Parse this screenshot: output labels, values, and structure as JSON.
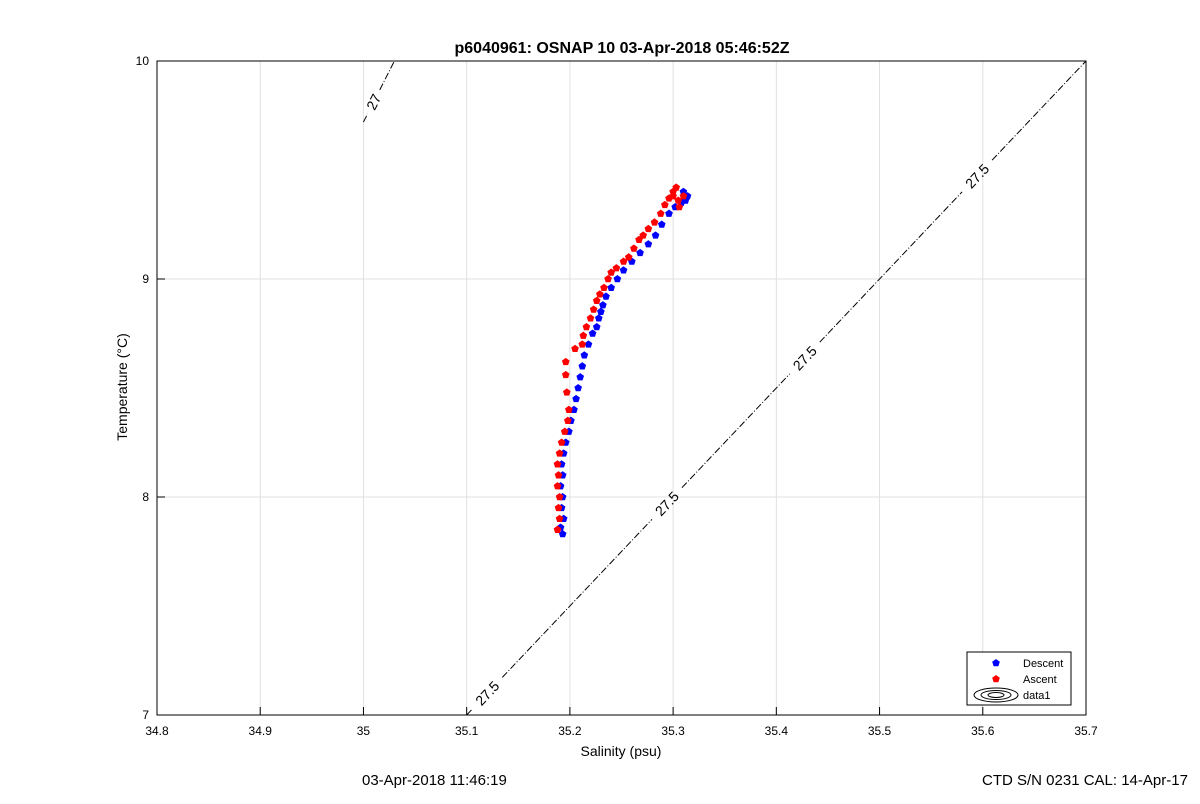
{
  "chart_data": {
    "type": "scatter",
    "title": "p6040961: OSNAP 10 03-Apr-2018 05:46:52Z",
    "xlabel": "Salinity (psu)",
    "ylabel": "Temperature (°C)",
    "xlim": [
      34.8,
      35.7
    ],
    "ylim": [
      7,
      10
    ],
    "xticks": [
      "34.8",
      "34.9",
      "35",
      "35.1",
      "35.2",
      "35.3",
      "35.4",
      "35.5",
      "35.6",
      "35.7"
    ],
    "yticks": [
      "7",
      "8",
      "9",
      "10"
    ],
    "grid": true,
    "legend_position": "bottom-right",
    "series": [
      {
        "name": "Descent",
        "color": "#0000ff",
        "marker": "pentagon",
        "points": [
          [
            35.193,
            7.83
          ],
          [
            35.191,
            7.86
          ],
          [
            35.194,
            7.9
          ],
          [
            35.192,
            7.95
          ],
          [
            35.193,
            8.0
          ],
          [
            35.191,
            8.05
          ],
          [
            35.193,
            8.1
          ],
          [
            35.192,
            8.15
          ],
          [
            35.194,
            8.2
          ],
          [
            35.196,
            8.25
          ],
          [
            35.199,
            8.3
          ],
          [
            35.201,
            8.35
          ],
          [
            35.204,
            8.4
          ],
          [
            35.206,
            8.45
          ],
          [
            35.208,
            8.5
          ],
          [
            35.21,
            8.55
          ],
          [
            35.212,
            8.6
          ],
          [
            35.214,
            8.65
          ],
          [
            35.218,
            8.7
          ],
          [
            35.222,
            8.75
          ],
          [
            35.226,
            8.78
          ],
          [
            35.228,
            8.82
          ],
          [
            35.23,
            8.85
          ],
          [
            35.232,
            8.88
          ],
          [
            35.235,
            8.92
          ],
          [
            35.24,
            8.96
          ],
          [
            35.246,
            9.0
          ],
          [
            35.252,
            9.04
          ],
          [
            35.26,
            9.08
          ],
          [
            35.268,
            9.12
          ],
          [
            35.276,
            9.16
          ],
          [
            35.283,
            9.2
          ],
          [
            35.289,
            9.25
          ],
          [
            35.296,
            9.3
          ],
          [
            35.302,
            9.33
          ],
          [
            35.308,
            9.35
          ],
          [
            35.312,
            9.36
          ],
          [
            35.314,
            9.38
          ],
          [
            35.31,
            9.4
          ]
        ]
      },
      {
        "name": "Ascent",
        "color": "#ff0000",
        "marker": "pentagon",
        "points": [
          [
            35.188,
            7.85
          ],
          [
            35.19,
            7.9
          ],
          [
            35.189,
            7.95
          ],
          [
            35.19,
            8.0
          ],
          [
            35.188,
            8.05
          ],
          [
            35.189,
            8.1
          ],
          [
            35.188,
            8.15
          ],
          [
            35.19,
            8.2
          ],
          [
            35.192,
            8.25
          ],
          [
            35.195,
            8.3
          ],
          [
            35.198,
            8.35
          ],
          [
            35.199,
            8.4
          ],
          [
            35.197,
            8.48
          ],
          [
            35.196,
            8.56
          ],
          [
            35.196,
            8.62
          ],
          [
            35.205,
            8.68
          ],
          [
            35.212,
            8.7
          ],
          [
            35.213,
            8.74
          ],
          [
            35.216,
            8.78
          ],
          [
            35.22,
            8.82
          ],
          [
            35.223,
            8.86
          ],
          [
            35.226,
            8.9
          ],
          [
            35.229,
            8.93
          ],
          [
            35.233,
            8.96
          ],
          [
            35.237,
            9.0
          ],
          [
            35.24,
            9.03
          ],
          [
            35.245,
            9.05
          ],
          [
            35.252,
            9.08
          ],
          [
            35.257,
            9.1
          ],
          [
            35.262,
            9.14
          ],
          [
            35.267,
            9.18
          ],
          [
            35.271,
            9.2
          ],
          [
            35.276,
            9.23
          ],
          [
            35.282,
            9.26
          ],
          [
            35.288,
            9.3
          ],
          [
            35.292,
            9.34
          ],
          [
            35.296,
            9.37
          ],
          [
            35.3,
            9.4
          ],
          [
            35.303,
            9.42
          ],
          [
            35.3,
            9.38
          ],
          [
            35.305,
            9.36
          ],
          [
            35.31,
            9.38
          ],
          [
            35.306,
            9.33
          ]
        ]
      }
    ],
    "legend_entries": [
      "Descent",
      "Ascent",
      "data1"
    ],
    "contours": [
      {
        "label": "27",
        "points": [
          [
            35.0,
            9.72
          ],
          [
            35.03,
            10.0
          ]
        ],
        "label_positions": [
          [
            35.011,
            9.81
          ]
        ]
      },
      {
        "label": "27.5",
        "points": [
          [
            35.1,
            7.0
          ],
          [
            35.7,
            10.0
          ]
        ],
        "label_positions": [
          [
            35.12,
            7.1
          ],
          [
            35.294,
            7.97
          ],
          [
            35.427,
            8.64
          ],
          [
            35.595,
            9.47
          ]
        ]
      }
    ],
    "footer_left": "03-Apr-2018 11:46:19",
    "footer_right": "CTD S/N 0231  CAL: 14-Apr-17"
  }
}
